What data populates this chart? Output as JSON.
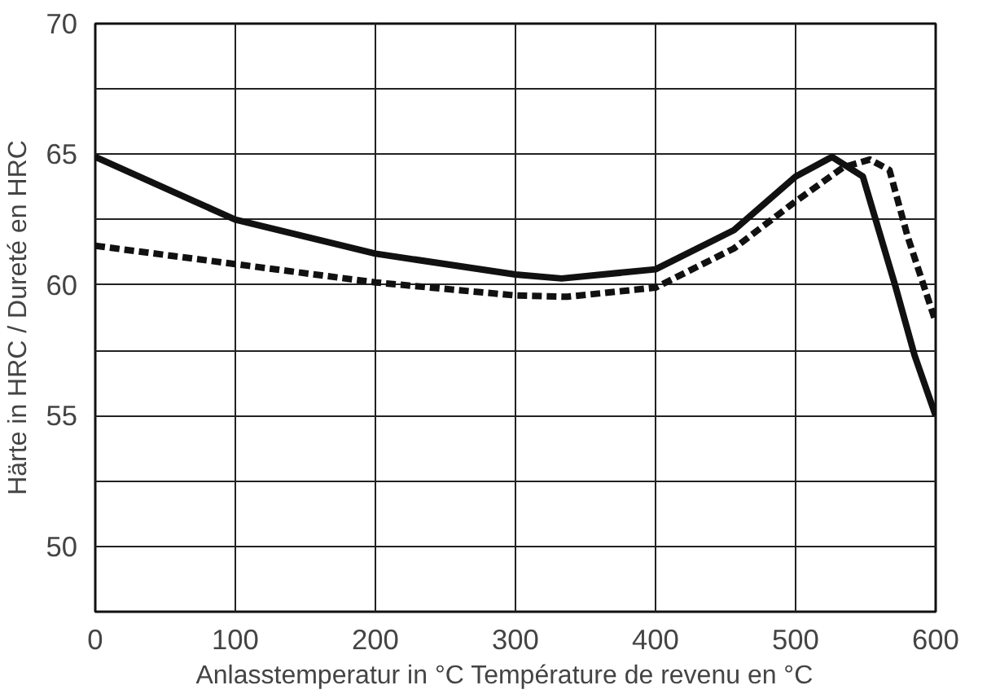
{
  "chart_data": {
    "type": "line",
    "xlabel": "Anlasstemperatur in °C    Température de revenu en °C",
    "ylabel": "Härte in HRC / Dureté en HRC",
    "xlim": [
      0,
      600
    ],
    "ylim": [
      47.5,
      70
    ],
    "xticks": [
      0,
      100,
      200,
      300,
      400,
      500,
      600
    ],
    "yticks": [
      50,
      {
        "value": 52.5,
        "label": null
      },
      55,
      {
        "value": 57.5,
        "label": null
      },
      60,
      {
        "value": 62.5,
        "label": null
      },
      65,
      {
        "value": 67.5,
        "label": null
      },
      70
    ],
    "grid": true,
    "series": [
      {
        "color": "#111111",
        "line_style": "solid",
        "x": [
          0,
          100,
          200,
          300,
          333,
          400,
          456,
          500,
          526,
          548,
          571,
          585,
          600
        ],
        "values": [
          64.9,
          62.5,
          61.2,
          60.4,
          60.25,
          60.6,
          62.1,
          64.15,
          64.9,
          64.15,
          60.0,
          57.3,
          55.0
        ]
      },
      {
        "color": "#111111",
        "line_style": "dashed",
        "x": [
          0,
          100,
          200,
          300,
          337,
          400,
          456,
          500,
          534,
          553,
          567,
          580,
          599
        ],
        "values": [
          61.5,
          60.8,
          60.1,
          59.6,
          59.55,
          59.9,
          61.4,
          63.2,
          64.5,
          64.8,
          64.4,
          61.85,
          58.75
        ]
      }
    ]
  }
}
